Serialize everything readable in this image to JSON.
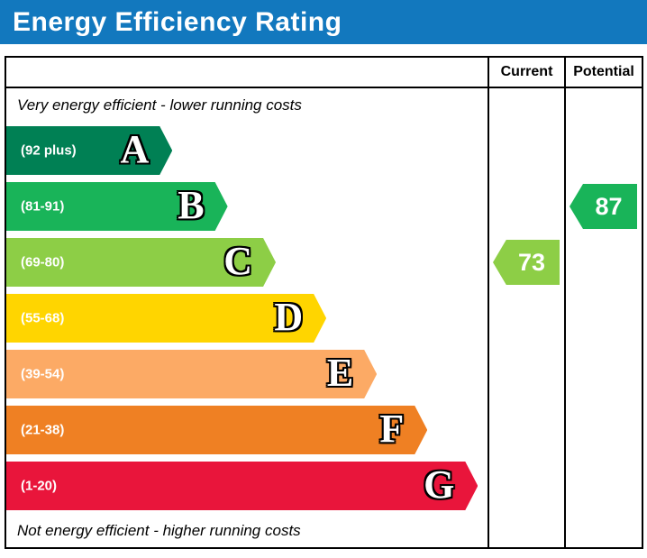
{
  "title": "Energy Efficiency Rating",
  "header": {
    "current": "Current",
    "potential": "Potential"
  },
  "notes": {
    "top": "Very energy efficient - lower running costs",
    "bottom": "Not energy efficient - higher running costs"
  },
  "colors": {
    "title_bar": "#1278be",
    "border": "#000000"
  },
  "chart_data": {
    "type": "bar",
    "title": "Energy Efficiency Rating",
    "bands": [
      {
        "letter": "A",
        "range": "(92 plus)",
        "color": "#008054",
        "width_pct": 34.5
      },
      {
        "letter": "B",
        "range": "(81-91)",
        "color": "#19b459",
        "width_pct": 46
      },
      {
        "letter": "C",
        "range": "(69-80)",
        "color": "#8dce46",
        "width_pct": 56
      },
      {
        "letter": "D",
        "range": "(55-68)",
        "color": "#ffd500",
        "width_pct": 66.5
      },
      {
        "letter": "E",
        "range": "(39-54)",
        "color": "#fcaa65",
        "width_pct": 77
      },
      {
        "letter": "F",
        "range": "(21-38)",
        "color": "#ef8023",
        "width_pct": 87.5
      },
      {
        "letter": "G",
        "range": "(1-20)",
        "color": "#e9153b",
        "width_pct": 98
      }
    ],
    "current": {
      "value": 73,
      "band": "C",
      "color": "#8dce46"
    },
    "potential": {
      "value": 87,
      "band": "B",
      "color": "#19b459"
    }
  }
}
